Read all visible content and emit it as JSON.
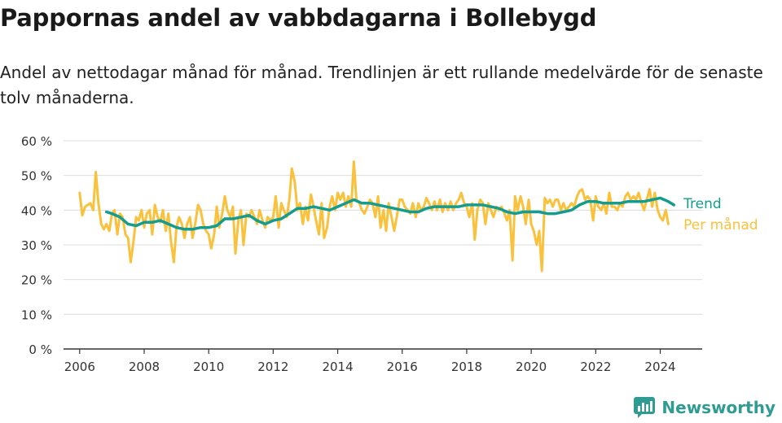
{
  "title": "Pappornas andel av vabbdagarna i Bollebygd",
  "subtitle": "Andel av nettodagar månad för månad. Trendlinjen är ett rullande medelvärde för de senaste tolv månaderna.",
  "brand": {
    "name": "Newsworthy",
    "icon": "newsworthy-logo-icon",
    "color": "#2e9c92"
  },
  "chart_data": {
    "type": "line",
    "x_unit": "year",
    "xlim": [
      2005.5,
      2025.3
    ],
    "ylim": [
      0,
      60
    ],
    "xticks": [
      {
        "value": 2006,
        "label": "2006"
      },
      {
        "value": 2008,
        "label": "2008"
      },
      {
        "value": 2010,
        "label": "2010"
      },
      {
        "value": 2012,
        "label": "2012"
      },
      {
        "value": 2014,
        "label": "2014"
      },
      {
        "value": 2016,
        "label": "2016"
      },
      {
        "value": 2018,
        "label": "2018"
      },
      {
        "value": 2020,
        "label": "2020"
      },
      {
        "value": 2022,
        "label": "2022"
      },
      {
        "value": 2024,
        "label": "2024"
      }
    ],
    "yticks": [
      {
        "value": 0,
        "label": "0 %"
      },
      {
        "value": 10,
        "label": "10 %"
      },
      {
        "value": 20,
        "label": "20 %"
      },
      {
        "value": 30,
        "label": "30 %"
      },
      {
        "value": 40,
        "label": "40 %"
      },
      {
        "value": 50,
        "label": "50 %"
      },
      {
        "value": 60,
        "label": "60 %"
      }
    ],
    "grid": true,
    "legend": "direct labels at right end of lines",
    "series": [
      {
        "name": "Per månad",
        "color": "#f9c13c",
        "points": [
          [
            2006.0,
            45
          ],
          [
            2006.08,
            38.5
          ],
          [
            2006.17,
            41
          ],
          [
            2006.25,
            41.5
          ],
          [
            2006.33,
            42
          ],
          [
            2006.42,
            40
          ],
          [
            2006.5,
            51
          ],
          [
            2006.58,
            42
          ],
          [
            2006.67,
            36
          ],
          [
            2006.75,
            34.5
          ],
          [
            2006.83,
            36
          ],
          [
            2006.92,
            34
          ],
          [
            2007.0,
            39
          ],
          [
            2007.08,
            40
          ],
          [
            2007.17,
            33
          ],
          [
            2007.25,
            39
          ],
          [
            2007.33,
            38
          ],
          [
            2007.42,
            33
          ],
          [
            2007.5,
            32
          ],
          [
            2007.58,
            25
          ],
          [
            2007.67,
            31
          ],
          [
            2007.75,
            38
          ],
          [
            2007.83,
            37
          ],
          [
            2007.92,
            40
          ],
          [
            2008.0,
            35
          ],
          [
            2008.08,
            39
          ],
          [
            2008.17,
            40
          ],
          [
            2008.25,
            33
          ],
          [
            2008.33,
            41.5
          ],
          [
            2008.42,
            38
          ],
          [
            2008.5,
            36.5
          ],
          [
            2008.58,
            40
          ],
          [
            2008.67,
            34
          ],
          [
            2008.75,
            39
          ],
          [
            2008.83,
            31
          ],
          [
            2008.92,
            25
          ],
          [
            2009.0,
            35
          ],
          [
            2009.08,
            38
          ],
          [
            2009.17,
            36
          ],
          [
            2009.25,
            32
          ],
          [
            2009.33,
            36
          ],
          [
            2009.42,
            38
          ],
          [
            2009.5,
            32
          ],
          [
            2009.58,
            36
          ],
          [
            2009.67,
            41.5
          ],
          [
            2009.75,
            40
          ],
          [
            2009.83,
            36
          ],
          [
            2009.92,
            34
          ],
          [
            2010.0,
            33
          ],
          [
            2010.08,
            29
          ],
          [
            2010.17,
            33
          ],
          [
            2010.25,
            41
          ],
          [
            2010.33,
            35
          ],
          [
            2010.42,
            39
          ],
          [
            2010.5,
            44
          ],
          [
            2010.58,
            40
          ],
          [
            2010.67,
            38
          ],
          [
            2010.75,
            41
          ],
          [
            2010.83,
            27.5
          ],
          [
            2010.92,
            37
          ],
          [
            2011.0,
            40
          ],
          [
            2011.08,
            30
          ],
          [
            2011.17,
            39
          ],
          [
            2011.25,
            38
          ],
          [
            2011.33,
            40
          ],
          [
            2011.42,
            38
          ],
          [
            2011.5,
            36
          ],
          [
            2011.58,
            40
          ],
          [
            2011.67,
            37
          ],
          [
            2011.75,
            35
          ],
          [
            2011.83,
            38
          ],
          [
            2011.92,
            37
          ],
          [
            2012.0,
            38
          ],
          [
            2012.08,
            44
          ],
          [
            2012.17,
            35
          ],
          [
            2012.25,
            42
          ],
          [
            2012.33,
            40
          ],
          [
            2012.42,
            38
          ],
          [
            2012.5,
            43
          ],
          [
            2012.58,
            52
          ],
          [
            2012.67,
            48
          ],
          [
            2012.75,
            40
          ],
          [
            2012.83,
            42
          ],
          [
            2012.92,
            36
          ],
          [
            2013.0,
            41
          ],
          [
            2013.08,
            37
          ],
          [
            2013.17,
            44.5
          ],
          [
            2013.25,
            41
          ],
          [
            2013.33,
            37
          ],
          [
            2013.42,
            33
          ],
          [
            2013.5,
            42
          ],
          [
            2013.58,
            32
          ],
          [
            2013.67,
            35
          ],
          [
            2013.75,
            41
          ],
          [
            2013.83,
            44
          ],
          [
            2013.92,
            40
          ],
          [
            2014.0,
            45
          ],
          [
            2014.08,
            43
          ],
          [
            2014.17,
            45
          ],
          [
            2014.25,
            41
          ],
          [
            2014.33,
            44
          ],
          [
            2014.42,
            41
          ],
          [
            2014.5,
            54
          ],
          [
            2014.58,
            43
          ],
          [
            2014.67,
            42
          ],
          [
            2014.75,
            40
          ],
          [
            2014.83,
            39
          ],
          [
            2014.92,
            41
          ],
          [
            2015.0,
            43
          ],
          [
            2015.08,
            42
          ],
          [
            2015.17,
            38
          ],
          [
            2015.25,
            44
          ],
          [
            2015.33,
            35
          ],
          [
            2015.42,
            40
          ],
          [
            2015.5,
            34
          ],
          [
            2015.58,
            42
          ],
          [
            2015.67,
            38
          ],
          [
            2015.75,
            34
          ],
          [
            2015.83,
            38
          ],
          [
            2015.92,
            43
          ],
          [
            2016.0,
            43
          ],
          [
            2016.08,
            41
          ],
          [
            2016.17,
            40
          ],
          [
            2016.25,
            39
          ],
          [
            2016.33,
            42
          ],
          [
            2016.42,
            38
          ],
          [
            2016.5,
            42
          ],
          [
            2016.58,
            40
          ],
          [
            2016.67,
            41
          ],
          [
            2016.75,
            43.5
          ],
          [
            2016.83,
            42
          ],
          [
            2016.92,
            40
          ],
          [
            2017.0,
            42.5
          ],
          [
            2017.08,
            40
          ],
          [
            2017.17,
            43
          ],
          [
            2017.25,
            39.5
          ],
          [
            2017.33,
            42
          ],
          [
            2017.42,
            40
          ],
          [
            2017.5,
            42.5
          ],
          [
            2017.58,
            40
          ],
          [
            2017.67,
            42
          ],
          [
            2017.75,
            43
          ],
          [
            2017.83,
            45
          ],
          [
            2017.92,
            42
          ],
          [
            2018.0,
            41
          ],
          [
            2018.08,
            38
          ],
          [
            2018.17,
            42
          ],
          [
            2018.25,
            31.5
          ],
          [
            2018.33,
            40
          ],
          [
            2018.42,
            43
          ],
          [
            2018.5,
            42
          ],
          [
            2018.58,
            36
          ],
          [
            2018.67,
            42
          ],
          [
            2018.75,
            40
          ],
          [
            2018.83,
            38
          ],
          [
            2018.92,
            41
          ],
          [
            2019.0,
            40
          ],
          [
            2019.08,
            41
          ],
          [
            2019.17,
            39
          ],
          [
            2019.25,
            37
          ],
          [
            2019.33,
            40
          ],
          [
            2019.42,
            25.5
          ],
          [
            2019.5,
            44
          ],
          [
            2019.58,
            40
          ],
          [
            2019.67,
            44
          ],
          [
            2019.75,
            41
          ],
          [
            2019.83,
            36
          ],
          [
            2019.92,
            43
          ],
          [
            2020.0,
            36
          ],
          [
            2020.08,
            34
          ],
          [
            2020.17,
            30
          ],
          [
            2020.25,
            34
          ],
          [
            2020.33,
            22.5
          ],
          [
            2020.42,
            43.5
          ],
          [
            2020.5,
            42
          ],
          [
            2020.58,
            43
          ],
          [
            2020.67,
            41
          ],
          [
            2020.75,
            43
          ],
          [
            2020.83,
            43
          ],
          [
            2020.92,
            40
          ],
          [
            2021.0,
            42
          ],
          [
            2021.08,
            40
          ],
          [
            2021.17,
            41
          ],
          [
            2021.25,
            42
          ],
          [
            2021.33,
            41
          ],
          [
            2021.42,
            44
          ],
          [
            2021.5,
            45.5
          ],
          [
            2021.58,
            46
          ],
          [
            2021.67,
            43
          ],
          [
            2021.75,
            44
          ],
          [
            2021.83,
            43
          ],
          [
            2021.92,
            37
          ],
          [
            2022.0,
            44
          ],
          [
            2022.08,
            41
          ],
          [
            2022.17,
            40
          ],
          [
            2022.25,
            42
          ],
          [
            2022.33,
            39
          ],
          [
            2022.42,
            45
          ],
          [
            2022.5,
            41
          ],
          [
            2022.58,
            41
          ],
          [
            2022.67,
            40
          ],
          [
            2022.75,
            42
          ],
          [
            2022.83,
            41
          ],
          [
            2022.92,
            44
          ],
          [
            2023.0,
            45
          ],
          [
            2023.08,
            43
          ],
          [
            2023.17,
            44
          ],
          [
            2023.25,
            43
          ],
          [
            2023.33,
            45
          ],
          [
            2023.42,
            42
          ],
          [
            2023.5,
            40
          ],
          [
            2023.58,
            43
          ],
          [
            2023.67,
            46
          ],
          [
            2023.75,
            41
          ],
          [
            2023.83,
            45
          ],
          [
            2023.92,
            40
          ],
          [
            2024.0,
            38
          ],
          [
            2024.08,
            37
          ],
          [
            2024.17,
            40
          ],
          [
            2024.25,
            36
          ]
        ]
      },
      {
        "name": "Trend",
        "color": "#149c8e",
        "points": [
          [
            2006.83,
            39.5
          ],
          [
            2007.0,
            39
          ],
          [
            2007.25,
            38
          ],
          [
            2007.5,
            36
          ],
          [
            2007.75,
            35.5
          ],
          [
            2008.0,
            36.5
          ],
          [
            2008.25,
            36.5
          ],
          [
            2008.5,
            37
          ],
          [
            2008.75,
            36
          ],
          [
            2009.0,
            35
          ],
          [
            2009.25,
            34.5
          ],
          [
            2009.5,
            34.5
          ],
          [
            2009.75,
            35
          ],
          [
            2010.0,
            35
          ],
          [
            2010.25,
            35.5
          ],
          [
            2010.5,
            37.5
          ],
          [
            2010.75,
            37.5
          ],
          [
            2011.0,
            38
          ],
          [
            2011.25,
            38.5
          ],
          [
            2011.5,
            37
          ],
          [
            2011.75,
            36
          ],
          [
            2012.0,
            37
          ],
          [
            2012.25,
            37.5
          ],
          [
            2012.5,
            39
          ],
          [
            2012.75,
            40.5
          ],
          [
            2013.0,
            40.5
          ],
          [
            2013.25,
            41
          ],
          [
            2013.5,
            40.5
          ],
          [
            2013.75,
            40
          ],
          [
            2014.0,
            41
          ],
          [
            2014.25,
            42
          ],
          [
            2014.5,
            43
          ],
          [
            2014.75,
            42
          ],
          [
            2015.0,
            42
          ],
          [
            2015.25,
            41.5
          ],
          [
            2015.5,
            41
          ],
          [
            2015.75,
            40.5
          ],
          [
            2016.0,
            40
          ],
          [
            2016.25,
            39.5
          ],
          [
            2016.5,
            39.5
          ],
          [
            2016.75,
            40.5
          ],
          [
            2017.0,
            41
          ],
          [
            2017.25,
            41
          ],
          [
            2017.5,
            41
          ],
          [
            2017.75,
            41
          ],
          [
            2018.0,
            41.5
          ],
          [
            2018.25,
            41.5
          ],
          [
            2018.5,
            41.5
          ],
          [
            2018.75,
            41
          ],
          [
            2019.0,
            40.5
          ],
          [
            2019.25,
            39.5
          ],
          [
            2019.5,
            39
          ],
          [
            2019.75,
            39.5
          ],
          [
            2020.0,
            39.5
          ],
          [
            2020.25,
            39.5
          ],
          [
            2020.5,
            39
          ],
          [
            2020.75,
            39
          ],
          [
            2021.0,
            39.5
          ],
          [
            2021.25,
            40
          ],
          [
            2021.5,
            41.5
          ],
          [
            2021.75,
            42.5
          ],
          [
            2022.0,
            42.5
          ],
          [
            2022.25,
            42
          ],
          [
            2022.5,
            42
          ],
          [
            2022.75,
            42
          ],
          [
            2023.0,
            42.5
          ],
          [
            2023.25,
            42.5
          ],
          [
            2023.5,
            42.5
          ],
          [
            2023.75,
            43
          ],
          [
            2024.0,
            43.5
          ],
          [
            2024.25,
            42.5
          ],
          [
            2024.42,
            41.5
          ]
        ]
      }
    ]
  }
}
